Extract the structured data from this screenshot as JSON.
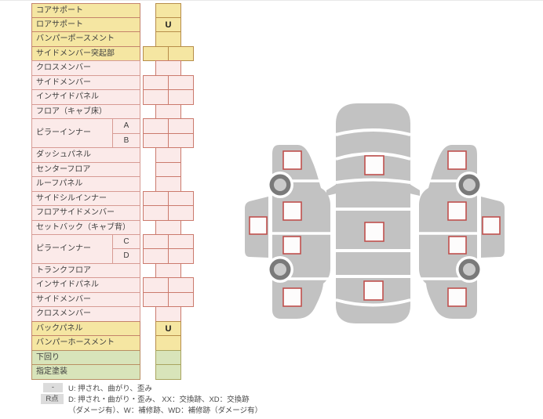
{
  "colors": {
    "yellow_row_bg": "#F5E6A2",
    "pink_row_bg": "#FBEAE9",
    "green_row_bg": "#D8E4BA",
    "yellow_cell_border": "#B78D4A",
    "pink_cell_border": "#CB7A6D",
    "green_cell_border": "#A9A45F",
    "checkbox_border": "#C0504D",
    "car_body_gray": "#C2C2C2",
    "wheel_ring_gray": "#7A7A7A",
    "legend_box_bg": "#DCDCDC"
  },
  "table": {
    "rows": [
      {
        "label": "コアサポート",
        "color": "yellow",
        "boxes": 1,
        "value": ""
      },
      {
        "label": "ロアサポート",
        "color": "yellow",
        "boxes": 1,
        "value": "U"
      },
      {
        "label": "バンパーポースメント",
        "color": "yellow",
        "boxes": 1,
        "value": ""
      },
      {
        "label": "サイドメンバー突起部",
        "color": "yellow",
        "boxes": 2,
        "value": ""
      },
      {
        "label": "クロスメンバー",
        "color": "pink",
        "boxes": 1,
        "value": ""
      },
      {
        "label": "サイドメンバー",
        "color": "pink",
        "boxes": 2,
        "value": ""
      },
      {
        "label": "インサイドパネル",
        "color": "pink",
        "boxes": 2,
        "value": ""
      },
      {
        "label": "フロア（キャブ床）",
        "color": "pink",
        "boxes": 1,
        "value": ""
      },
      {
        "label": "ピラーインナー",
        "sub": "A",
        "group": "start",
        "color": "pink",
        "boxes": 2,
        "value": ""
      },
      {
        "label": "ピラーインナー",
        "sub": "B",
        "group": "end",
        "color": "pink",
        "boxes": 2,
        "value": ""
      },
      {
        "label": "ダッシュパネル",
        "color": "pink",
        "boxes": 1,
        "value": ""
      },
      {
        "label": "センターフロア",
        "color": "pink",
        "boxes": 1,
        "value": ""
      },
      {
        "label": "ルーフパネル",
        "color": "pink",
        "boxes": 1,
        "value": ""
      },
      {
        "label": "サイドシルインナー",
        "color": "pink",
        "boxes": 2,
        "value": ""
      },
      {
        "label": "フロアサイドメンバー",
        "color": "pink",
        "boxes": 2,
        "value": ""
      },
      {
        "label": "セットバック（キャブ背）",
        "color": "pink",
        "boxes": 1,
        "value": ""
      },
      {
        "label": "ピラーインナー",
        "sub": "C",
        "group": "start",
        "color": "pink",
        "boxes": 2,
        "value": ""
      },
      {
        "label": "ピラーインナー",
        "sub": "D",
        "group": "end",
        "color": "pink",
        "boxes": 2,
        "value": ""
      },
      {
        "label": "トランクフロア",
        "color": "pink",
        "boxes": 1,
        "value": ""
      },
      {
        "label": "インサイドパネル",
        "color": "pink",
        "boxes": 2,
        "value": ""
      },
      {
        "label": "サイドメンバー",
        "color": "pink",
        "boxes": 2,
        "value": ""
      },
      {
        "label": "クロスメンバー",
        "color": "pink",
        "boxes": 1,
        "value": ""
      },
      {
        "label": "バックパネル",
        "color": "yellow",
        "boxes": 1,
        "value": "U"
      },
      {
        "label": "バンパーホースメント",
        "color": "yellow",
        "boxes": 1,
        "value": ""
      },
      {
        "label": "下回り",
        "color": "green",
        "boxes": 1,
        "value": ""
      },
      {
        "label": "指定塗装",
        "color": "green",
        "boxes": 1,
        "value": ""
      }
    ]
  },
  "legend": {
    "box1": "-",
    "line1": "U: 押され、曲がり、歪み",
    "box2": "R点",
    "line2": "D: 押され・曲がり・歪み、 XX：交換跡、XD：交換跡",
    "line3": "（ダメージ有）、W：補修跡、WD：補修跡（ダメージ有）"
  },
  "diagram": {
    "left_side_checkboxes": [
      "",
      "",
      "",
      "",
      ""
    ],
    "top_view_checkboxes": [
      "",
      "",
      ""
    ],
    "right_side_checkboxes": [
      "",
      "",
      "",
      "",
      ""
    ]
  }
}
